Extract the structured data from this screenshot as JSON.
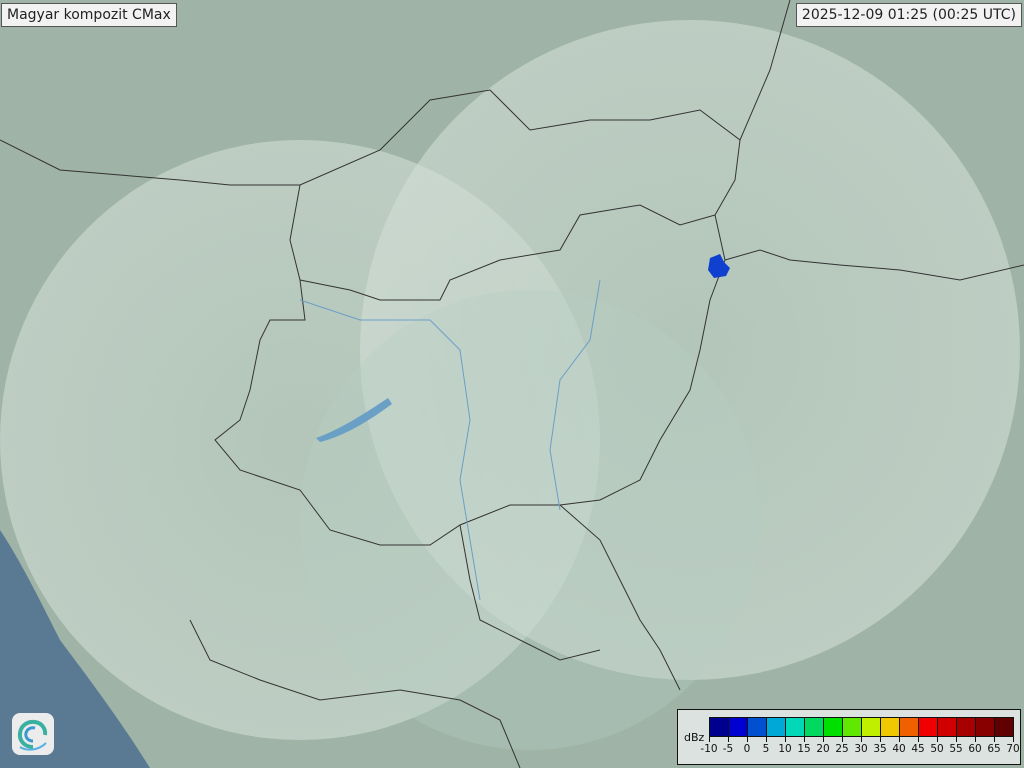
{
  "title": "Magyar kompozit  CMax",
  "timestamp": "2025-12-09 01:25 (00:25 UTC)",
  "legend": {
    "unit": "dBz",
    "ticks": [
      "-10",
      "-5",
      "0",
      "5",
      "10",
      "15",
      "20",
      "25",
      "30",
      "35",
      "40",
      "45",
      "50",
      "55",
      "60",
      "65",
      "70"
    ],
    "colors": [
      "#000090",
      "#0000d0",
      "#0050d0",
      "#00a8d8",
      "#00d8b8",
      "#00d860",
      "#00e000",
      "#60e800",
      "#c0f000",
      "#f0c800",
      "#f06000",
      "#f00000",
      "#d00000",
      "#a80000",
      "#880000",
      "#600000"
    ]
  },
  "map": {
    "land_color": "#9fb5a7",
    "sea_color": "#5a7a94",
    "coverage_color": "#c8d8ce",
    "echo_color": "#1040d0"
  },
  "logo": {
    "icon": "swirl-logo-icon"
  }
}
